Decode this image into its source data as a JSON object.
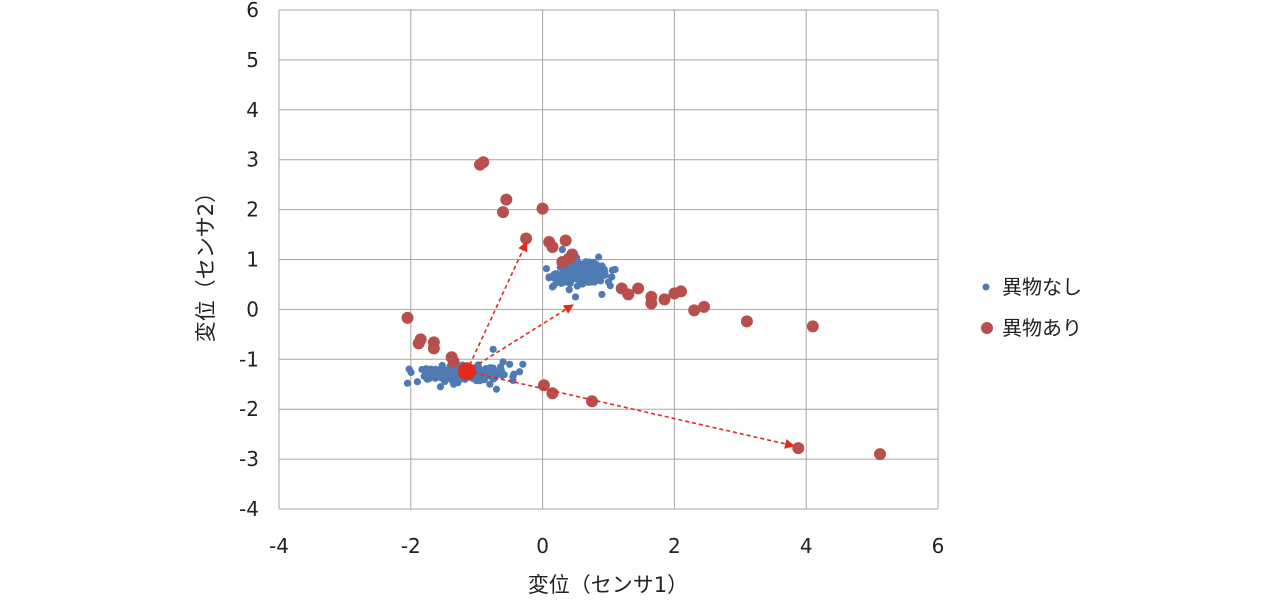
{
  "chart_data": {
    "type": "scatter",
    "xlabel": "変位（センサ1）",
    "ylabel": "変位（センサ2）",
    "xlim": [
      -4,
      6
    ],
    "ylim": [
      -4,
      6
    ],
    "x_ticks": [
      "-4",
      "-2",
      "0",
      "2",
      "4",
      "6"
    ],
    "y_ticks": [
      "-4",
      "-3",
      "-2",
      "-1",
      "0",
      "1",
      "2",
      "3",
      "4",
      "5",
      "6"
    ],
    "grid": true,
    "legend_position": "right",
    "colors": {
      "normal": "#4f7ab3",
      "foreign": "#b94f4c",
      "arrow": "#e02b1f"
    },
    "series": [
      {
        "name": "異物なし",
        "clusters": [
          {
            "center": [
              -1.2,
              -1.28
            ],
            "spread": [
              0.55,
              0.12
            ],
            "count": 260
          },
          {
            "center": [
              0.6,
              0.72
            ],
            "spread": [
              0.38,
              0.16
            ],
            "count": 240
          }
        ],
        "points": [
          [
            -2.05,
            -1.48
          ],
          [
            -1.9,
            -1.45
          ],
          [
            -1.75,
            -1.4
          ],
          [
            -1.55,
            -1.55
          ],
          [
            -1.35,
            -1.5
          ],
          [
            -0.75,
            -0.8
          ],
          [
            -0.6,
            -1.05
          ],
          [
            -0.5,
            -1.1
          ],
          [
            -0.45,
            -1.35
          ],
          [
            -0.7,
            -1.6
          ],
          [
            -0.8,
            -1.5
          ],
          [
            -0.3,
            -1.1
          ],
          [
            -0.35,
            -1.25
          ],
          [
            0.1,
            0.65
          ],
          [
            0.15,
            0.45
          ],
          [
            1.0,
            0.55
          ],
          [
            1.05,
            0.65
          ],
          [
            0.9,
            0.3
          ],
          [
            0.5,
            0.25
          ],
          [
            0.3,
            1.2
          ],
          [
            0.85,
            1.05
          ],
          [
            1.1,
            0.8
          ]
        ]
      },
      {
        "name": "異物あり",
        "points": [
          [
            -0.95,
            2.9
          ],
          [
            -0.9,
            2.95
          ],
          [
            -0.55,
            2.2
          ],
          [
            -0.6,
            1.95
          ],
          [
            0.0,
            2.02
          ],
          [
            -0.25,
            1.42
          ],
          [
            0.1,
            1.35
          ],
          [
            0.15,
            1.25
          ],
          [
            0.35,
            1.38
          ],
          [
            0.45,
            1.1
          ],
          [
            0.4,
            1.02
          ],
          [
            0.3,
            0.95
          ],
          [
            1.2,
            0.42
          ],
          [
            1.3,
            0.3
          ],
          [
            1.45,
            0.42
          ],
          [
            1.65,
            0.25
          ],
          [
            1.65,
            0.12
          ],
          [
            1.85,
            0.2
          ],
          [
            2.0,
            0.32
          ],
          [
            2.1,
            0.36
          ],
          [
            2.3,
            -0.02
          ],
          [
            2.45,
            0.05
          ],
          [
            3.1,
            -0.24
          ],
          [
            4.1,
            -0.34
          ],
          [
            -2.05,
            -0.17
          ],
          [
            -1.85,
            -0.6
          ],
          [
            -1.88,
            -0.68
          ],
          [
            -1.65,
            -0.66
          ],
          [
            -1.65,
            -0.78
          ],
          [
            -1.38,
            -0.96
          ],
          [
            -1.35,
            -1.05
          ],
          [
            0.02,
            -1.52
          ],
          [
            0.15,
            -1.68
          ],
          [
            0.75,
            -1.84
          ],
          [
            3.88,
            -2.78
          ],
          [
            5.12,
            -2.9
          ]
        ]
      }
    ],
    "highlight_point": [
      -1.15,
      -1.24
    ],
    "arrows": [
      {
        "from": [
          -1.15,
          -1.24
        ],
        "to": [
          -0.25,
          1.33
        ]
      },
      {
        "from": [
          -1.15,
          -1.24
        ],
        "to": [
          0.45,
          0.08
        ]
      },
      {
        "from": [
          -1.15,
          -1.24
        ],
        "to": [
          3.8,
          -2.73
        ]
      }
    ]
  }
}
